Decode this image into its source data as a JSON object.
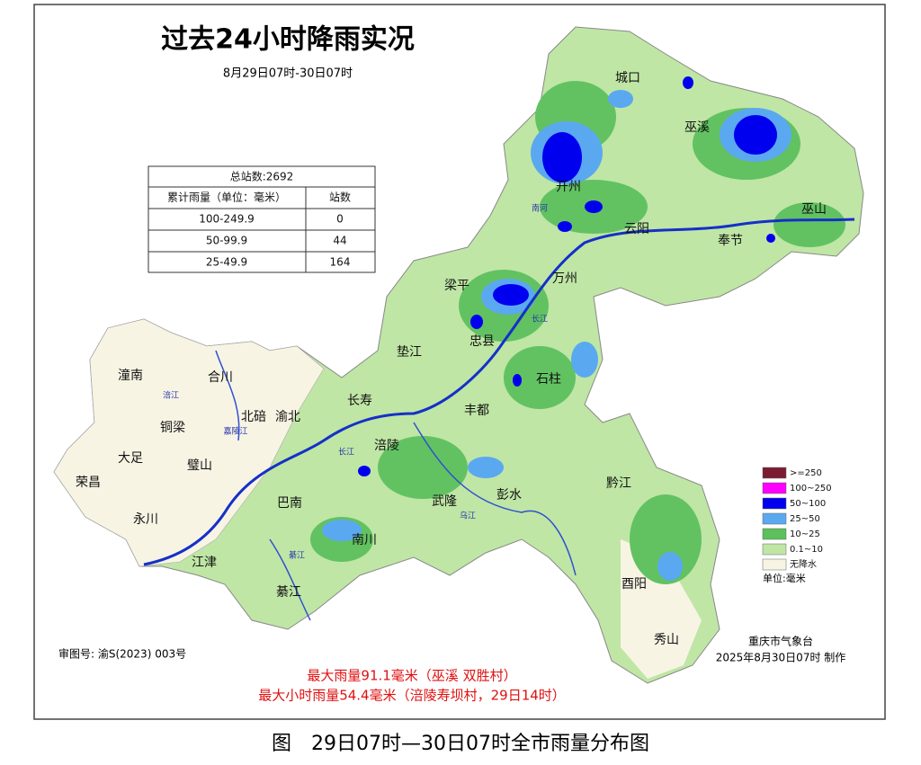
{
  "header": {
    "title": "过去24小时降雨实况",
    "subtitle": "8月29日07时-30日07时"
  },
  "table": {
    "total": "总站数:2692",
    "header": [
      "累计雨量（单位：毫米）",
      "站数"
    ],
    "rows": [
      [
        "100-249.9",
        "0"
      ],
      [
        "50-99.9",
        "44"
      ],
      [
        "25-49.9",
        "164"
      ]
    ]
  },
  "places": [
    "城口",
    "巫溪",
    "开州",
    "巫山",
    "云阳",
    "奉节",
    "梁平",
    "万州",
    "忠县",
    "垫江",
    "石柱",
    "长寿",
    "丰都",
    "潼南",
    "合川",
    "铜梁",
    "北碚",
    "渝北",
    "大足",
    "璧山",
    "荣昌",
    "永川",
    "涪陵",
    "巴南",
    "武隆",
    "彭水",
    "黔江",
    "南川",
    "江津",
    "綦江",
    "酉阳",
    "秀山"
  ],
  "rivers": [
    "长江",
    "长江",
    "乌江",
    "涪江",
    "嘉陵江",
    "綦江",
    "南河"
  ],
  "legend": {
    "items": [
      {
        "label": ">=250",
        "color": "#7b1c32"
      },
      {
        "label": "100~250",
        "color": "#ff00ff"
      },
      {
        "label": "50~100",
        "color": "#0000ee"
      },
      {
        "label": "25~50",
        "color": "#5aa8f0"
      },
      {
        "label": "10~25",
        "color": "#5cc05c"
      },
      {
        "label": "0.1~10",
        "color": "#bfe6a5"
      },
      {
        "label": "无降水",
        "color": "#f8f4e4"
      }
    ],
    "unit": "单位:毫米"
  },
  "footer": {
    "approval": "审图号: 渝S(2023) 003号",
    "issuer": "重庆市气象台",
    "issued": "2025年8月30日07时  制作",
    "max_rain": "最大雨量91.1毫米（巫溪 双胜村）",
    "max_hourly": "最大小时雨量54.4毫米（涪陵寿坝村，29日14时）"
  },
  "caption": "图　29日07时—30日07时全市雨量分布图"
}
